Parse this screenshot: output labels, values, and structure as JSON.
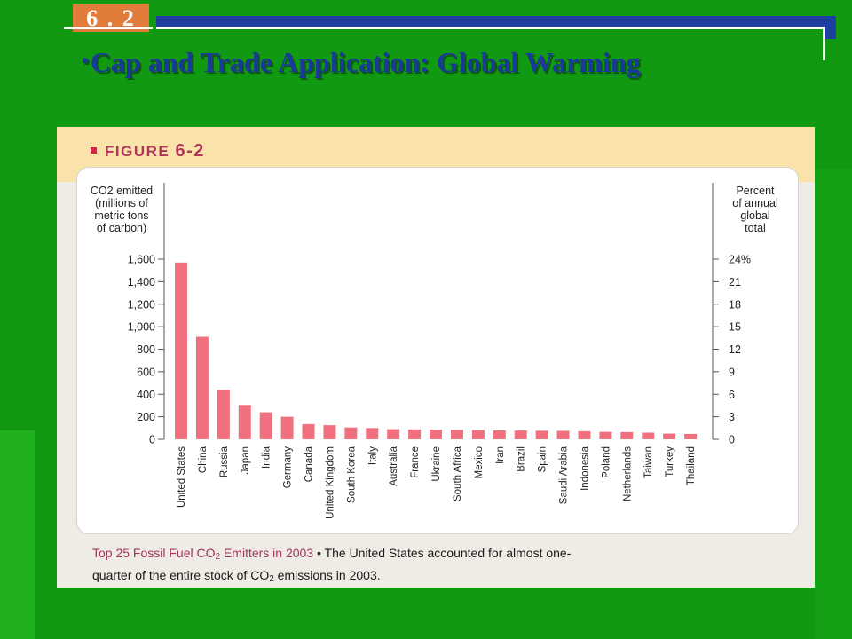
{
  "slide": {
    "number": "6 . 2",
    "title": "Cap and Trade Application: Global Warming",
    "bullet": "▪"
  },
  "figure": {
    "label_prefix": "FIGURE",
    "label_number": "6-2"
  },
  "caption": {
    "lead": "Top 25 Fossil Fuel CO",
    "lead_sub": "2",
    "lead_end": " Emitters in 2003",
    "bullet": "•",
    "body": "The United States accounted for almost one-",
    "line2_start": "quarter of the entire stock of CO",
    "line2_sub": "2",
    "line2_end": " emissions in 2003."
  },
  "colors": {
    "bar": "#f0707f",
    "accent": "#c92b44",
    "background": "#129912",
    "title": "#1a3a9a"
  },
  "chart_data": {
    "type": "bar",
    "left_axis": {
      "label_lines": [
        "CO2 emitted",
        "(millions of",
        "metric tons",
        "of carbon)"
      ],
      "ticks": [
        "1,600",
        "1,400",
        "1,200",
        "1,000",
        "800",
        "600",
        "400",
        "200",
        "0"
      ],
      "tick_values": [
        1600,
        1400,
        1200,
        1000,
        800,
        600,
        400,
        200,
        0
      ],
      "ylim": [
        0,
        1600
      ]
    },
    "right_axis": {
      "label_lines": [
        "Percent",
        "of annual",
        "global",
        "total"
      ],
      "ticks": [
        "24%",
        "21",
        "18",
        "15",
        "12",
        "9",
        "6",
        "3",
        "0"
      ]
    },
    "categories": [
      "United States",
      "China",
      "Russia",
      "Japan",
      "India",
      "Germany",
      "Canada",
      "United Kingdom",
      "South Korea",
      "Italy",
      "Australia",
      "France",
      "Ukraine",
      "South Africa",
      "Mexico",
      "Iran",
      "Brazil",
      "Spain",
      "Saudi Arabia",
      "Indonesia",
      "Poland",
      "Netherlands",
      "Taiwan",
      "Turkey",
      "Thailand"
    ],
    "values": [
      1570,
      910,
      440,
      305,
      240,
      200,
      135,
      125,
      105,
      100,
      90,
      88,
      86,
      84,
      82,
      79,
      78,
      76,
      75,
      72,
      66,
      64,
      59,
      51,
      48
    ],
    "grid": false
  }
}
